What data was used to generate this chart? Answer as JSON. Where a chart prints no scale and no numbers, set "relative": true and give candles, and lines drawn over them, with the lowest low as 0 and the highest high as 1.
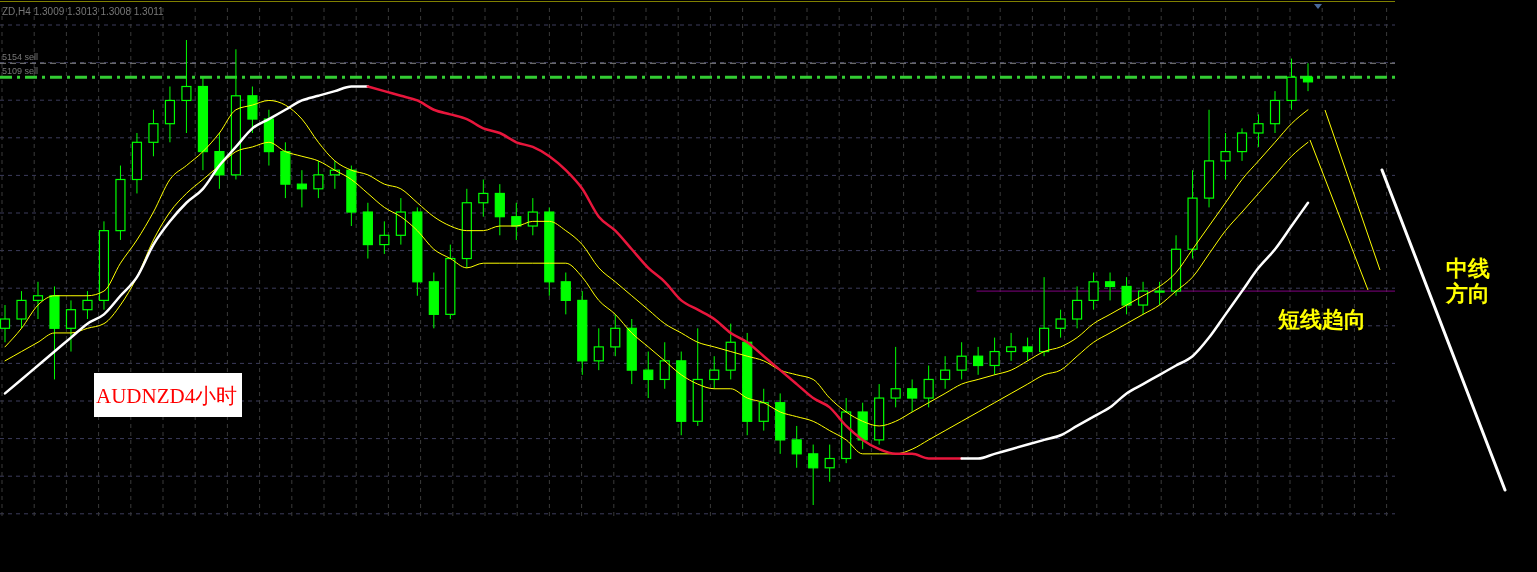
{
  "chart_data": {
    "type": "candlestick",
    "relative": true,
    "grid": true,
    "color": "#00ff00",
    "categories": [
      null,
      null,
      null,
      null,
      null,
      null,
      null,
      null,
      null,
      null,
      null,
      null,
      null,
      null,
      null,
      null,
      null,
      null,
      null,
      null,
      null,
      null,
      null,
      null,
      null,
      null,
      null,
      null,
      null,
      null,
      null,
      null,
      null,
      null,
      null,
      null,
      null,
      null,
      null,
      null,
      null,
      null,
      null,
      null,
      null,
      null,
      null,
      null,
      null,
      null,
      null,
      null,
      null,
      null,
      null,
      null,
      null,
      null,
      null,
      null,
      null,
      null,
      null,
      null,
      null,
      null,
      null,
      null,
      null,
      null,
      null,
      null,
      null,
      null,
      null,
      null,
      null,
      null,
      null,
      null
    ],
    "ohlc": [
      [
        0.38,
        0.43,
        0.35,
        0.4
      ],
      [
        0.4,
        0.46,
        0.38,
        0.44
      ],
      [
        0.44,
        0.48,
        0.4,
        0.45
      ],
      [
        0.45,
        0.47,
        0.27,
        0.38
      ],
      [
        0.38,
        0.44,
        0.33,
        0.42
      ],
      [
        0.42,
        0.46,
        0.4,
        0.44
      ],
      [
        0.44,
        0.61,
        0.42,
        0.59
      ],
      [
        0.59,
        0.73,
        0.57,
        0.7
      ],
      [
        0.7,
        0.8,
        0.67,
        0.78
      ],
      [
        0.78,
        0.85,
        0.75,
        0.82
      ],
      [
        0.82,
        0.9,
        0.78,
        0.87
      ],
      [
        0.87,
        1.0,
        0.8,
        0.9
      ],
      [
        0.9,
        0.92,
        0.72,
        0.76
      ],
      [
        0.76,
        0.8,
        0.68,
        0.71
      ],
      [
        0.71,
        0.98,
        0.7,
        0.88
      ],
      [
        0.88,
        0.9,
        0.8,
        0.83
      ],
      [
        0.83,
        0.85,
        0.73,
        0.76
      ],
      [
        0.76,
        0.78,
        0.66,
        0.69
      ],
      [
        0.69,
        0.72,
        0.64,
        0.68
      ],
      [
        0.68,
        0.74,
        0.66,
        0.71
      ],
      [
        0.71,
        0.74,
        0.68,
        0.72
      ],
      [
        0.72,
        0.73,
        0.6,
        0.63
      ],
      [
        0.63,
        0.65,
        0.53,
        0.56
      ],
      [
        0.56,
        0.61,
        0.54,
        0.58
      ],
      [
        0.58,
        0.66,
        0.56,
        0.63
      ],
      [
        0.63,
        0.64,
        0.45,
        0.48
      ],
      [
        0.48,
        0.5,
        0.38,
        0.41
      ],
      [
        0.41,
        0.56,
        0.4,
        0.53
      ],
      [
        0.53,
        0.68,
        0.51,
        0.65
      ],
      [
        0.65,
        0.7,
        0.62,
        0.67
      ],
      [
        0.67,
        0.69,
        0.58,
        0.62
      ],
      [
        0.62,
        0.65,
        0.57,
        0.6
      ],
      [
        0.6,
        0.66,
        0.58,
        0.63
      ],
      [
        0.63,
        0.64,
        0.45,
        0.48
      ],
      [
        0.48,
        0.5,
        0.41,
        0.44
      ],
      [
        0.44,
        0.46,
        0.28,
        0.31
      ],
      [
        0.31,
        0.38,
        0.29,
        0.34
      ],
      [
        0.34,
        0.41,
        0.32,
        0.38
      ],
      [
        0.38,
        0.4,
        0.26,
        0.29
      ],
      [
        0.29,
        0.33,
        0.23,
        0.27
      ],
      [
        0.27,
        0.35,
        0.25,
        0.31
      ],
      [
        0.31,
        0.33,
        0.15,
        0.18
      ],
      [
        0.18,
        0.38,
        0.17,
        0.27
      ],
      [
        0.27,
        0.32,
        0.25,
        0.29
      ],
      [
        0.29,
        0.39,
        0.27,
        0.35
      ],
      [
        0.35,
        0.37,
        0.15,
        0.18
      ],
      [
        0.18,
        0.25,
        0.16,
        0.22
      ],
      [
        0.22,
        0.24,
        0.11,
        0.14
      ],
      [
        0.14,
        0.17,
        0.08,
        0.11
      ],
      [
        0.11,
        0.13,
        0.0,
        0.08
      ],
      [
        0.08,
        0.13,
        0.05,
        0.1
      ],
      [
        0.1,
        0.23,
        0.09,
        0.2
      ],
      [
        0.2,
        0.22,
        0.12,
        0.14
      ],
      [
        0.14,
        0.26,
        0.13,
        0.23
      ],
      [
        0.23,
        0.34,
        0.21,
        0.25
      ],
      [
        0.25,
        0.27,
        0.2,
        0.23
      ],
      [
        0.23,
        0.3,
        0.21,
        0.27
      ],
      [
        0.27,
        0.32,
        0.25,
        0.29
      ],
      [
        0.29,
        0.35,
        0.27,
        0.32
      ],
      [
        0.32,
        0.34,
        0.28,
        0.3
      ],
      [
        0.3,
        0.36,
        0.28,
        0.33
      ],
      [
        0.33,
        0.37,
        0.31,
        0.34
      ],
      [
        0.34,
        0.36,
        0.31,
        0.33
      ],
      [
        0.33,
        0.49,
        0.32,
        0.38
      ],
      [
        0.38,
        0.42,
        0.36,
        0.4
      ],
      [
        0.4,
        0.47,
        0.38,
        0.44
      ],
      [
        0.44,
        0.5,
        0.42,
        0.48
      ],
      [
        0.48,
        0.5,
        0.44,
        0.47
      ],
      [
        0.47,
        0.49,
        0.41,
        0.43
      ],
      [
        0.43,
        0.48,
        0.41,
        0.46
      ],
      [
        0.46,
        0.48,
        0.43,
        0.46
      ],
      [
        0.46,
        0.58,
        0.45,
        0.55
      ],
      [
        0.55,
        0.72,
        0.53,
        0.66
      ],
      [
        0.66,
        0.85,
        0.64,
        0.74
      ],
      [
        0.74,
        0.8,
        0.7,
        0.76
      ],
      [
        0.76,
        0.81,
        0.74,
        0.8
      ],
      [
        0.8,
        0.84,
        0.77,
        0.82
      ],
      [
        0.82,
        0.89,
        0.8,
        0.87
      ],
      [
        0.87,
        0.96,
        0.85,
        0.92
      ],
      [
        0.92,
        0.95,
        0.89,
        0.91
      ]
    ],
    "series": [
      {
        "type": "line",
        "color": "#ffff00",
        "values": [
          0.34,
          0.38,
          0.43,
          0.45,
          0.45,
          0.45,
          0.46,
          0.52,
          0.57,
          0.63,
          0.7,
          0.73,
          0.76,
          0.8,
          0.85,
          0.86,
          0.87,
          0.86,
          0.83,
          0.78,
          0.74,
          0.72,
          0.71,
          0.69,
          0.68,
          0.65,
          0.62,
          0.6,
          0.59,
          0.59,
          0.6,
          0.6,
          0.61,
          0.61,
          0.59,
          0.56,
          0.51,
          0.48,
          0.45,
          0.42,
          0.39,
          0.37,
          0.35,
          0.34,
          0.33,
          0.32,
          0.31,
          0.29,
          0.28,
          0.27,
          0.23,
          0.2,
          0.18,
          0.17,
          0.18,
          0.2,
          0.22,
          0.24,
          0.26,
          0.27,
          0.28,
          0.29,
          0.31,
          0.33,
          0.34,
          0.36,
          0.39,
          0.41,
          0.43,
          0.45,
          0.47,
          0.5,
          0.55,
          0.6,
          0.65,
          0.7,
          0.74,
          0.78,
          0.82,
          0.85
        ]
      },
      {
        "type": "line",
        "color": "#ffff00",
        "values": [
          0.31,
          0.33,
          0.35,
          0.37,
          0.37,
          0.38,
          0.39,
          0.43,
          0.49,
          0.57,
          0.63,
          0.67,
          0.7,
          0.73,
          0.76,
          0.77,
          0.78,
          0.76,
          0.75,
          0.74,
          0.72,
          0.7,
          0.67,
          0.64,
          0.62,
          0.59,
          0.55,
          0.53,
          0.51,
          0.52,
          0.52,
          0.52,
          0.52,
          0.52,
          0.52,
          0.49,
          0.44,
          0.41,
          0.37,
          0.34,
          0.31,
          0.28,
          0.26,
          0.25,
          0.25,
          0.23,
          0.22,
          0.2,
          0.19,
          0.18,
          0.16,
          0.14,
          0.11,
          0.11,
          0.11,
          0.12,
          0.14,
          0.16,
          0.18,
          0.2,
          0.22,
          0.24,
          0.26,
          0.28,
          0.29,
          0.32,
          0.35,
          0.37,
          0.39,
          0.41,
          0.43,
          0.46,
          0.49,
          0.54,
          0.59,
          0.63,
          0.67,
          0.71,
          0.75,
          0.78
        ]
      },
      {
        "type": "line",
        "color": "#ffffff",
        "values": [
          0.24,
          0.27,
          0.3,
          0.33,
          0.36,
          0.39,
          0.41,
          0.45,
          0.49,
          0.56,
          0.61,
          0.65,
          0.68,
          0.73,
          0.77,
          0.81,
          0.83,
          0.85,
          0.87,
          0.88,
          0.89,
          0.9,
          0.9,
          null,
          null,
          null,
          null,
          null,
          null,
          null,
          null,
          null,
          null,
          null,
          null,
          null,
          null,
          null,
          null,
          null,
          null,
          null,
          null,
          null,
          null,
          null,
          null,
          null,
          null,
          null,
          null,
          null,
          null,
          null,
          null,
          null,
          null,
          null,
          null,
          null,
          null,
          null,
          null,
          null,
          null,
          null,
          null,
          null,
          null,
          null,
          null,
          null,
          null,
          null,
          null,
          null,
          null,
          null,
          null,
          null
        ]
      },
      {
        "type": "line",
        "color": "#e8163c",
        "values": [
          null,
          null,
          null,
          null,
          null,
          null,
          null,
          null,
          null,
          null,
          null,
          null,
          null,
          null,
          null,
          null,
          null,
          null,
          null,
          null,
          null,
          null,
          0.9,
          0.89,
          0.88,
          0.87,
          0.85,
          0.84,
          0.83,
          0.81,
          0.8,
          0.78,
          0.77,
          0.75,
          0.72,
          0.68,
          0.62,
          0.59,
          0.55,
          0.51,
          0.48,
          0.44,
          0.42,
          0.4,
          0.37,
          0.35,
          0.32,
          0.29,
          0.26,
          0.23,
          0.21,
          0.17,
          0.14,
          0.12,
          0.11,
          0.11,
          0.1,
          0.1,
          0.1,
          null,
          null,
          null,
          null,
          null,
          null,
          null,
          null,
          null,
          null,
          null,
          null,
          null,
          null,
          null,
          null,
          null,
          null,
          null,
          null,
          null
        ]
      },
      {
        "type": "line",
        "color": "#ffffff",
        "values": [
          null,
          null,
          null,
          null,
          null,
          null,
          null,
          null,
          null,
          null,
          null,
          null,
          null,
          null,
          null,
          null,
          null,
          null,
          null,
          null,
          null,
          null,
          null,
          null,
          null,
          null,
          null,
          null,
          null,
          null,
          null,
          null,
          null,
          null,
          null,
          null,
          null,
          null,
          null,
          null,
          null,
          null,
          null,
          null,
          null,
          null,
          null,
          null,
          null,
          null,
          null,
          null,
          null,
          null,
          null,
          null,
          null,
          null,
          0.1,
          0.1,
          0.11,
          0.12,
          0.13,
          0.14,
          0.15,
          0.17,
          0.19,
          0.21,
          0.24,
          0.26,
          0.28,
          0.3,
          0.32,
          0.36,
          0.41,
          0.46,
          0.51,
          0.55,
          0.6,
          0.65
        ]
      }
    ],
    "ref_lines": [
      {
        "axis": "y",
        "value": 0.95,
        "label": "5154 sell",
        "color": "#8a8a8a",
        "line_style": "dashed"
      },
      {
        "axis": "y",
        "value": 0.92,
        "label": "5109 sell",
        "color": "#33cc33",
        "line_style": "dashdot"
      },
      {
        "axis": "y",
        "value": 0.46,
        "color": "#800080",
        "line_style": "solid"
      }
    ],
    "annotations": [
      "ZD,H4  1.3009 1.3013 1.3008 1.3011",
      "AUDNZD4小时",
      "短线趋向",
      "中线",
      "方向"
    ]
  }
}
